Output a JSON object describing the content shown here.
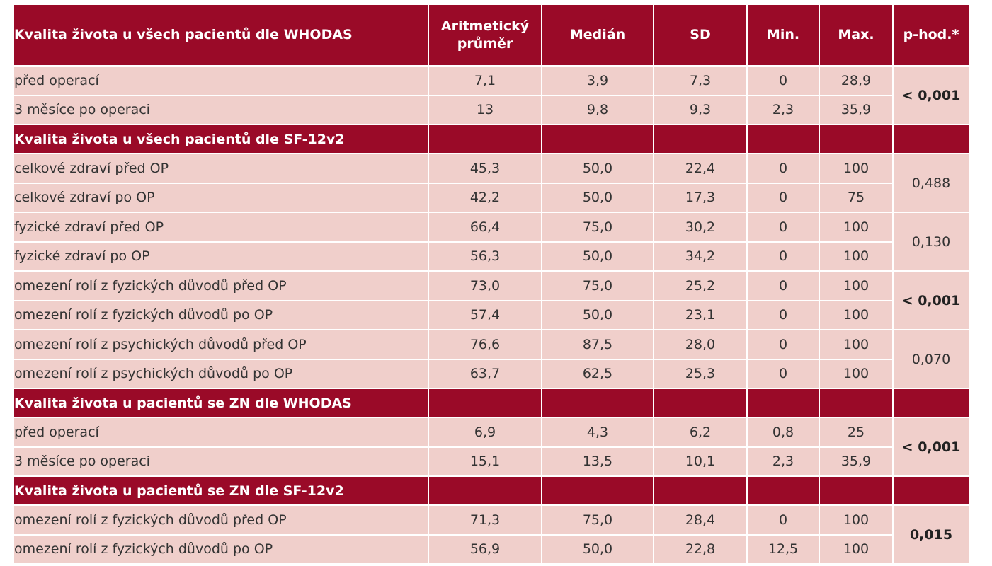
{
  "table": {
    "header": [
      "Kvalita života u všech pacientů dle WHODAS",
      "Aritmetický průměr",
      "Medián",
      "SD",
      "Min.",
      "Max.",
      "p-hod.*"
    ],
    "sections": [
      {
        "title": "",
        "rows": [
          {
            "label": "před operací",
            "values": [
              "7,1",
              "3,9",
              "7,3",
              "0",
              "28,9"
            ]
          },
          {
            "label": "3 měsíce po operaci",
            "values": [
              "13",
              "9,8",
              "9,3",
              "2,3",
              "35,9"
            ]
          }
        ],
        "p_groups": [
          {
            "value": "< 0,001",
            "bold": true
          }
        ]
      },
      {
        "title": "Kvalita života u všech pacientů dle SF-12v2",
        "rows": [
          {
            "label": "celkové zdraví před OP",
            "values": [
              "45,3",
              "50,0",
              "22,4",
              "0",
              "100"
            ]
          },
          {
            "label": "celkové zdraví po OP",
            "values": [
              "42,2",
              "50,0",
              "17,3",
              "0",
              "75"
            ]
          },
          {
            "label": "fyzické zdraví před OP",
            "values": [
              "66,4",
              "75,0",
              "30,2",
              "0",
              "100"
            ]
          },
          {
            "label": "fyzické zdraví po OP",
            "values": [
              "56,3",
              "50,0",
              "34,2",
              "0",
              "100"
            ]
          },
          {
            "label": "omezení rolí z fyzických důvodů před OP",
            "values": [
              "73,0",
              "75,0",
              "25,2",
              "0",
              "100"
            ]
          },
          {
            "label": "omezení rolí z fyzických důvodů po OP",
            "values": [
              "57,4",
              "50,0",
              "23,1",
              "0",
              "100"
            ]
          },
          {
            "label": "omezení rolí z psychických důvodů před OP",
            "values": [
              "76,6",
              "87,5",
              "28,0",
              "0",
              "100"
            ]
          },
          {
            "label": "omezení rolí z psychických důvodů po OP",
            "values": [
              "63,7",
              "62,5",
              "25,3",
              "0",
              "100"
            ]
          }
        ],
        "p_groups": [
          {
            "value": "0,488",
            "bold": false
          },
          {
            "value": "0,130",
            "bold": false
          },
          {
            "value": "< 0,001",
            "bold": true
          },
          {
            "value": "0,070",
            "bold": false
          }
        ]
      },
      {
        "title": "Kvalita života u pacientů se ZN dle WHODAS",
        "rows": [
          {
            "label": "před operací",
            "values": [
              "6,9",
              "4,3",
              "6,2",
              "0,8",
              "25"
            ]
          },
          {
            "label": "3 měsíce po operaci",
            "values": [
              "15,1",
              "13,5",
              "10,1",
              "2,3",
              "35,9"
            ]
          }
        ],
        "p_groups": [
          {
            "value": "< 0,001",
            "bold": true
          }
        ]
      },
      {
        "title": "Kvalita života u pacientů se ZN dle SF-12v2",
        "rows": [
          {
            "label": "omezení rolí z fyzických důvodů před OP",
            "values": [
              "71,3",
              "75,0",
              "28,4",
              "0",
              "100"
            ]
          },
          {
            "label": "omezení rolí z fyzických důvodů po OP",
            "values": [
              "56,9",
              "50,0",
              "22,8",
              "12,5",
              "100"
            ]
          }
        ],
        "p_groups": [
          {
            "value": "0,015",
            "bold": true
          }
        ]
      }
    ]
  }
}
